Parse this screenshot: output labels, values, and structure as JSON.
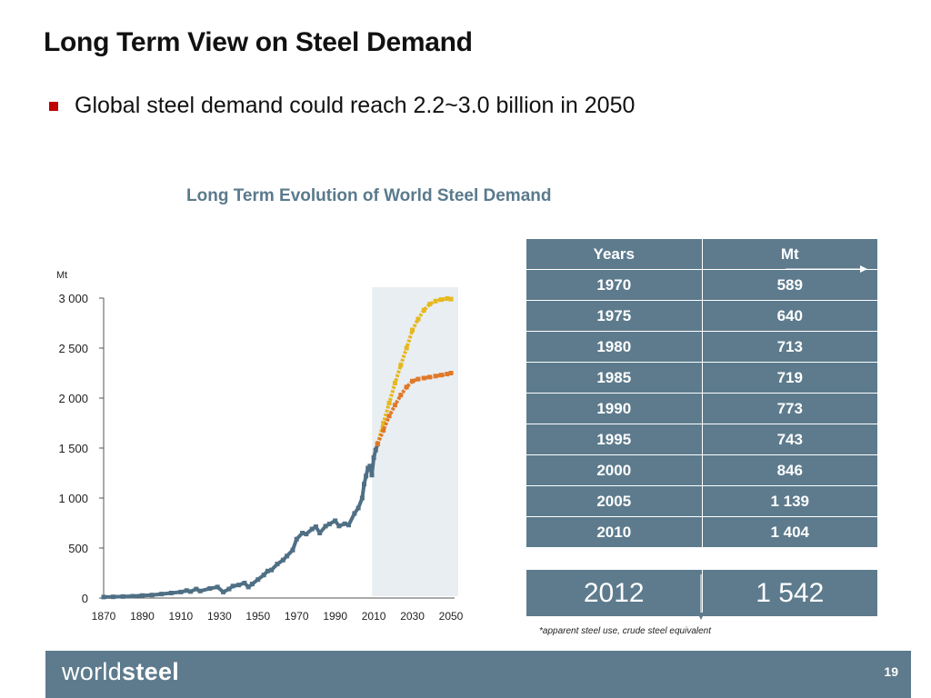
{
  "slide": {
    "title": "Long Term View on Steel Demand",
    "bullet": "Global steel demand could reach 2.2~3.0 billion in 2050",
    "page_number": "19",
    "footnote": "*apparent steel use, crude steel equivalent",
    "logo": {
      "part1": "world",
      "part2": "steel"
    }
  },
  "chart_data": {
    "type": "line",
    "title": "Long Term Evolution of World Steel Demand",
    "ylabel": "Mt",
    "xlabel": "",
    "xlim": [
      1870,
      2050
    ],
    "ylim": [
      0,
      3000
    ],
    "x_ticks": [
      "1870",
      "1890",
      "1910",
      "1930",
      "1950",
      "1970",
      "1990",
      "2010",
      "2030",
      "2050"
    ],
    "y_ticks": [
      {
        "value": 0,
        "label": "0"
      },
      {
        "value": 500,
        "label": "500"
      },
      {
        "value": 1000,
        "label": "1 000"
      },
      {
        "value": 1500,
        "label": "1 500"
      },
      {
        "value": 2000,
        "label": "2 000"
      },
      {
        "value": 2500,
        "label": "2 500"
      },
      {
        "value": 3000,
        "label": "3 000"
      }
    ],
    "projection_range": [
      2011,
      2050
    ],
    "colors": {
      "historical": "#4f6f85",
      "high": "#e6b81e",
      "low": "#e07828",
      "projection_band": "#e9eef2",
      "axis": "#555555"
    },
    "series": [
      {
        "name": "historical",
        "x": [
          1870,
          1875,
          1880,
          1885,
          1890,
          1895,
          1900,
          1905,
          1910,
          1913,
          1915,
          1918,
          1920,
          1925,
          1929,
          1932,
          1935,
          1937,
          1940,
          1943,
          1945,
          1947,
          1950,
          1953,
          1955,
          1957,
          1960,
          1963,
          1965,
          1968,
          1970,
          1973,
          1975,
          1978,
          1980,
          1982,
          1985,
          1987,
          1990,
          1992,
          1995,
          1997,
          2000,
          2002,
          2004,
          2005,
          2006,
          2007,
          2008,
          2009,
          2010,
          2011,
          2012
        ],
        "y": [
          10,
          12,
          15,
          18,
          25,
          30,
          40,
          50,
          60,
          75,
          65,
          90,
          70,
          95,
          110,
          60,
          90,
          120,
          130,
          150,
          110,
          140,
          185,
          230,
          270,
          280,
          340,
          380,
          420,
          480,
          589,
          650,
          640,
          690,
          713,
          650,
          719,
          740,
          773,
          720,
          743,
          730,
          846,
          900,
          1000,
          1139,
          1220,
          1300,
          1320,
          1230,
          1404,
          1480,
          1542
        ]
      },
      {
        "name": "high",
        "x": [
          2012,
          2015,
          2018,
          2021,
          2024,
          2027,
          2030,
          2033,
          2036,
          2039,
          2042,
          2045,
          2048,
          2050
        ],
        "y": [
          1542,
          1750,
          1950,
          2150,
          2330,
          2500,
          2680,
          2790,
          2880,
          2940,
          2970,
          2985,
          2995,
          2990
        ]
      },
      {
        "name": "low",
        "x": [
          2012,
          2015,
          2018,
          2021,
          2024,
          2027,
          2030,
          2033,
          2036,
          2039,
          2042,
          2045,
          2048,
          2050
        ],
        "y": [
          1542,
          1680,
          1820,
          1930,
          2030,
          2110,
          2170,
          2190,
          2200,
          2210,
          2220,
          2230,
          2240,
          2250
        ]
      }
    ]
  },
  "table": {
    "headers": {
      "years": "Years",
      "mt": "Mt"
    },
    "rows": [
      {
        "year": "1970",
        "mt": "589"
      },
      {
        "year": "1975",
        "mt": "640"
      },
      {
        "year": "1980",
        "mt": "713"
      },
      {
        "year": "1985",
        "mt": "719"
      },
      {
        "year": "1990",
        "mt": "773"
      },
      {
        "year": "1995",
        "mt": "743"
      },
      {
        "year": "2000",
        "mt": "846"
      },
      {
        "year": "2005",
        "mt": "1 139"
      },
      {
        "year": "2010",
        "mt": "1 404"
      }
    ],
    "highlight": {
      "year": "2012",
      "mt": "1 542"
    }
  }
}
